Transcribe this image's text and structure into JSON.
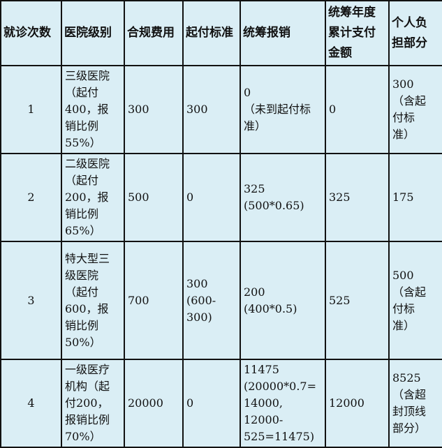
{
  "table": {
    "headers": [
      "就诊次数",
      "医院级别",
      "合规费用",
      "起付标准",
      "统筹报销",
      "统筹年度\n累计支付\n金额",
      "个人负\n担部分"
    ],
    "rows": [
      [
        "1",
        "三级医院\n（起付\n400，报\n销比例\n55%）",
        "300",
        "300",
        "0\n（未到起付标\n准）",
        "0",
        "300\n（含起\n付标\n准）"
      ],
      [
        "2",
        "二级医院\n（起付\n200，报\n销比例\n65%）",
        "500",
        "0",
        "325\n(500*0.65)",
        "325",
        "175"
      ],
      [
        "3",
        "特大型三\n级医院\n（起付\n600，报\n销比例\n50%）",
        "700",
        "300\n(600-\n300)",
        "200\n(400*0.5)",
        "525",
        "500\n（含起\n付标\n准）"
      ],
      [
        "4",
        "一级医疗\n机构（起\n付200，\n报销比例\n70%）",
        "20000",
        "0",
        "11475\n(20000*0.7=\n14000,\n12000-\n525=11475)",
        "12000",
        "8525\n（含超\n封顶线\n部分）"
      ]
    ]
  },
  "colors": {
    "cell_background": "#daeef5",
    "border": "#111111"
  }
}
